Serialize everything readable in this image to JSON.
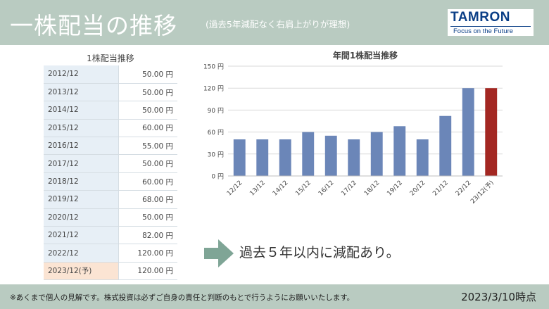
{
  "header": {
    "title": "一株配当の推移",
    "subtitle": "(過去5年減配なく右肩上がりが理想)"
  },
  "logo": {
    "name": "TAMRON",
    "tagline": "Focus on the Future",
    "color": "#0a3e86"
  },
  "table": {
    "title": "1株配当推移",
    "rows": [
      {
        "year": "2012/12",
        "value": "50.00 円"
      },
      {
        "year": "2013/12",
        "value": "50.00 円"
      },
      {
        "year": "2014/12",
        "value": "50.00 円"
      },
      {
        "year": "2015/12",
        "value": "60.00 円"
      },
      {
        "year": "2016/12",
        "value": "55.00 円"
      },
      {
        "year": "2017/12",
        "value": "50.00 円"
      },
      {
        "year": "2018/12",
        "value": "60.00 円"
      },
      {
        "year": "2019/12",
        "value": "68.00 円"
      },
      {
        "year": "2020/12",
        "value": "50.00 円"
      },
      {
        "year": "2021/12",
        "value": "82.00 円"
      },
      {
        "year": "2022/12",
        "value": "120.00 円"
      },
      {
        "year": "2023/12(予)",
        "value": "120.00 円",
        "forecast": true
      }
    ]
  },
  "chart_data": {
    "type": "bar",
    "title": "年間1株配当推移",
    "categories": [
      "12/12",
      "13/12",
      "14/12",
      "15/12",
      "16/12",
      "17/12",
      "18/12",
      "19/12",
      "20/12",
      "21/12",
      "22/12",
      "23/12(予)"
    ],
    "values": [
      50,
      50,
      50,
      60,
      55,
      50,
      60,
      68,
      50,
      82,
      120,
      120
    ],
    "forecast_index": 11,
    "ylim": [
      0,
      150
    ],
    "yticks": [
      0,
      30,
      60,
      90,
      120,
      150
    ],
    "ytick_labels": [
      "0 円",
      "30 円",
      "60 円",
      "90 円",
      "120 円",
      "150 円"
    ],
    "grid": true,
    "colors": {
      "actual": "#6b86b8",
      "forecast": "#a32722"
    }
  },
  "summary": "過去５年以内に減配あり。",
  "footer": {
    "disclaimer": "※あくまで個人の見解です。株式投資は必ずご自身の責任と判断のもとで行うようにお願いいたします。",
    "as_of": "2023/3/10時点"
  },
  "colors": {
    "band": "#b9cbc1",
    "arrow": "#7fa596"
  }
}
